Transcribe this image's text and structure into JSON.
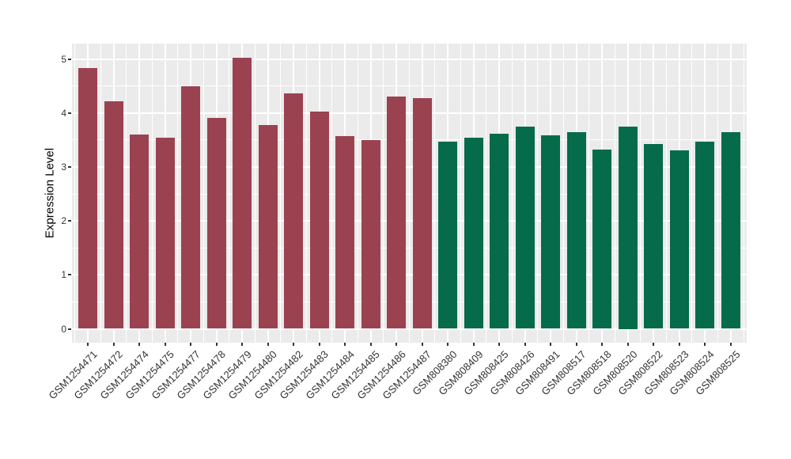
{
  "chart_data": {
    "type": "bar",
    "title": "",
    "xlabel": "",
    "ylabel": "Expression Level",
    "categories": [
      "GSM1254471",
      "GSM1254472",
      "GSM1254474",
      "GSM1254475",
      "GSM1254477",
      "GSM1254478",
      "GSM1254479",
      "GSM1254480",
      "GSM1254482",
      "GSM1254483",
      "GSM1254484",
      "GSM1254485",
      "GSM1254486",
      "GSM1254487",
      "GSM808380",
      "GSM808409",
      "GSM808425",
      "GSM808426",
      "GSM808491",
      "GSM808517",
      "GSM808518",
      "GSM808520",
      "GSM808522",
      "GSM808523",
      "GSM808524",
      "GSM808525"
    ],
    "values": [
      4.83,
      4.21,
      3.6,
      3.54,
      4.49,
      3.91,
      5.02,
      3.77,
      4.36,
      4.03,
      3.57,
      3.5,
      4.3,
      4.27,
      3.47,
      3.54,
      3.61,
      3.74,
      3.58,
      3.64,
      3.32,
      3.75,
      3.43,
      3.3,
      3.47,
      3.65
    ],
    "bar_groups": [
      "group1",
      "group1",
      "group1",
      "group1",
      "group1",
      "group1",
      "group1",
      "group1",
      "group1",
      "group1",
      "group1",
      "group1",
      "group1",
      "group1",
      "group2",
      "group2",
      "group2",
      "group2",
      "group2",
      "group2",
      "group2",
      "group2",
      "group2",
      "group2",
      "group2",
      "group2"
    ],
    "group_colors": {
      "group1": "#9B4251",
      "group2": "#056B4A"
    },
    "yticks": [
      0,
      1,
      2,
      3,
      4,
      5
    ],
    "ylim": [
      0,
      5.3
    ],
    "grid": "on",
    "minor_gridlines": "on",
    "legend_position": "none",
    "panel_background": "#EBEBEB",
    "gridline_color": "#FFFFFF",
    "axis_text_color": "#333333",
    "x_label_rotation_deg": 45
  }
}
